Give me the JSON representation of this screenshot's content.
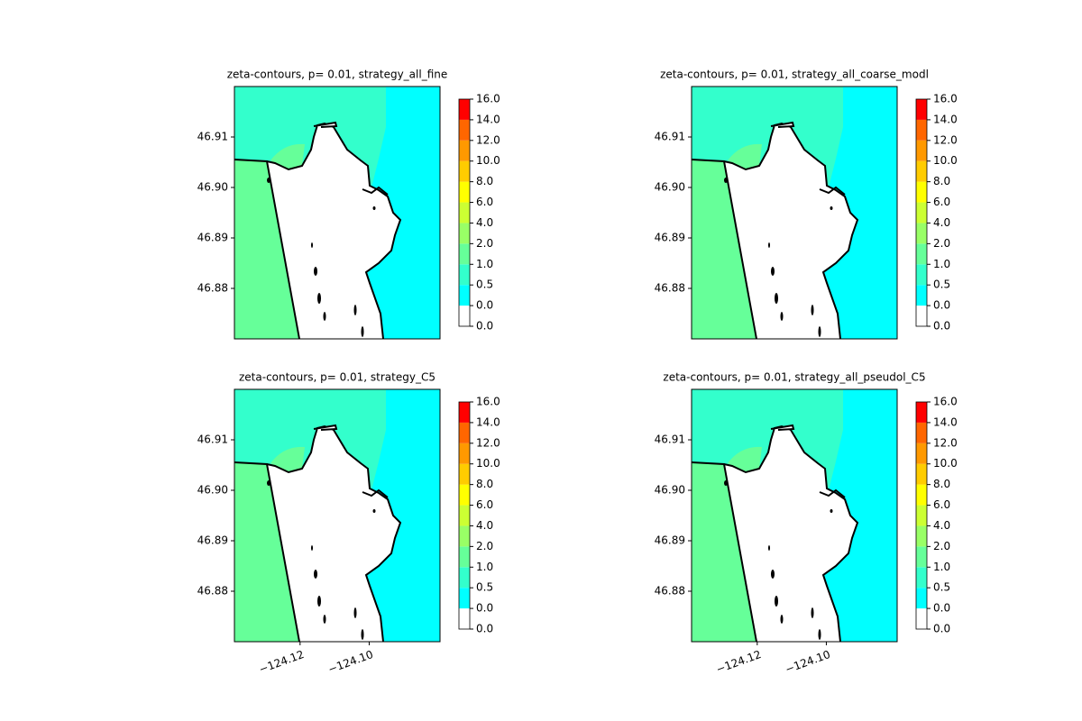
{
  "chart_data": [
    {
      "type": "contour",
      "title": "zeta-contours, p= 0.01, strategy_all_fine",
      "xlim": [
        -124.139,
        -124.0795
      ],
      "ylim": [
        46.87,
        46.92
      ],
      "yticks": [
        46.88,
        46.89,
        {
          "value": 46.9,
          "label": "46.90"
        },
        46.91
      ],
      "levels": [
        {
          "value": 0,
          "label": "0.0"
        },
        {
          "value": 0,
          "label": "0.0"
        },
        0.5,
        {
          "value": 1,
          "label": "1.0"
        },
        {
          "value": 2,
          "label": "2.0"
        },
        {
          "value": 4,
          "label": "4.0"
        },
        {
          "value": 6,
          "label": "6.0"
        },
        {
          "value": 8,
          "label": "8.0"
        },
        {
          "value": 10,
          "label": "10.0"
        },
        {
          "value": 12,
          "label": "12.0"
        },
        {
          "value": 14,
          "label": "14.0"
        },
        {
          "value": 16,
          "label": "16.0"
        }
      ],
      "colors": [
        "#ffffff",
        "#00ffff",
        "#33ffcc",
        "#66ff99",
        "#99ff66",
        "#ccff33",
        "#ffff00",
        "#ffcc00",
        "#ff9900",
        "#ff6600",
        "#ff0000"
      ]
    },
    {
      "type": "contour",
      "title": "zeta-contours, p= 0.01, strategy_all_coarse_modl",
      "xlim": [
        -124.139,
        -124.0795
      ],
      "ylim": [
        46.87,
        46.92
      ],
      "yticks": [
        46.88,
        46.89,
        {
          "value": 46.9,
          "label": "46.90"
        },
        46.91
      ],
      "levels": [
        {
          "value": 0,
          "label": "0.0"
        },
        {
          "value": 0,
          "label": "0.0"
        },
        0.5,
        {
          "value": 1,
          "label": "1.0"
        },
        {
          "value": 2,
          "label": "2.0"
        },
        {
          "value": 4,
          "label": "4.0"
        },
        {
          "value": 6,
          "label": "6.0"
        },
        {
          "value": 8,
          "label": "8.0"
        },
        {
          "value": 10,
          "label": "10.0"
        },
        {
          "value": 12,
          "label": "12.0"
        },
        {
          "value": 14,
          "label": "14.0"
        },
        {
          "value": 16,
          "label": "16.0"
        }
      ],
      "colors": [
        "#ffffff",
        "#00ffff",
        "#33ffcc",
        "#66ff99",
        "#99ff66",
        "#ccff33",
        "#ffff00",
        "#ffcc00",
        "#ff9900",
        "#ff6600",
        "#ff0000"
      ]
    },
    {
      "type": "contour",
      "title": "zeta-contours, p= 0.01, strategy_C5",
      "xlim": [
        -124.139,
        -124.0795
      ],
      "ylim": [
        46.87,
        46.92
      ],
      "xticks": [
        {
          "value": -124.12,
          "label": "−124.12"
        },
        {
          "value": -124.1,
          "label": "−124.10"
        }
      ],
      "yticks": [
        46.88,
        46.89,
        {
          "value": 46.9,
          "label": "46.90"
        },
        46.91
      ],
      "levels": [
        {
          "value": 0,
          "label": "0.0"
        },
        {
          "value": 0,
          "label": "0.0"
        },
        0.5,
        {
          "value": 1,
          "label": "1.0"
        },
        {
          "value": 2,
          "label": "2.0"
        },
        {
          "value": 4,
          "label": "4.0"
        },
        {
          "value": 6,
          "label": "6.0"
        },
        {
          "value": 8,
          "label": "8.0"
        },
        {
          "value": 10,
          "label": "10.0"
        },
        {
          "value": 12,
          "label": "12.0"
        },
        {
          "value": 14,
          "label": "14.0"
        },
        {
          "value": 16,
          "label": "16.0"
        }
      ],
      "colors": [
        "#ffffff",
        "#00ffff",
        "#33ffcc",
        "#66ff99",
        "#99ff66",
        "#ccff33",
        "#ffff00",
        "#ffcc00",
        "#ff9900",
        "#ff6600",
        "#ff0000"
      ]
    },
    {
      "type": "contour",
      "title": "zeta-contours, p= 0.01, strategy_all_pseudol_C5",
      "xlim": [
        -124.139,
        -124.0795
      ],
      "ylim": [
        46.87,
        46.92
      ],
      "xticks": [
        {
          "value": -124.12,
          "label": "−124.12"
        },
        {
          "value": -124.1,
          "label": "−124.10"
        }
      ],
      "yticks": [
        46.88,
        46.89,
        {
          "value": 46.9,
          "label": "46.90"
        },
        46.91
      ],
      "levels": [
        {
          "value": 0,
          "label": "0.0"
        },
        {
          "value": 0,
          "label": "0.0"
        },
        0.5,
        {
          "value": 1,
          "label": "1.0"
        },
        {
          "value": 2,
          "label": "2.0"
        },
        {
          "value": 4,
          "label": "4.0"
        },
        {
          "value": 6,
          "label": "6.0"
        },
        {
          "value": 8,
          "label": "8.0"
        },
        {
          "value": 10,
          "label": "10.0"
        },
        {
          "value": 12,
          "label": "12.0"
        },
        {
          "value": 14,
          "label": "14.0"
        },
        {
          "value": 16,
          "label": "16.0"
        }
      ],
      "colors": [
        "#ffffff",
        "#00ffff",
        "#33ffcc",
        "#66ff99",
        "#99ff66",
        "#ccff33",
        "#ffff00",
        "#ffcc00",
        "#ff9900",
        "#ff6600",
        "#ff0000"
      ]
    }
  ]
}
